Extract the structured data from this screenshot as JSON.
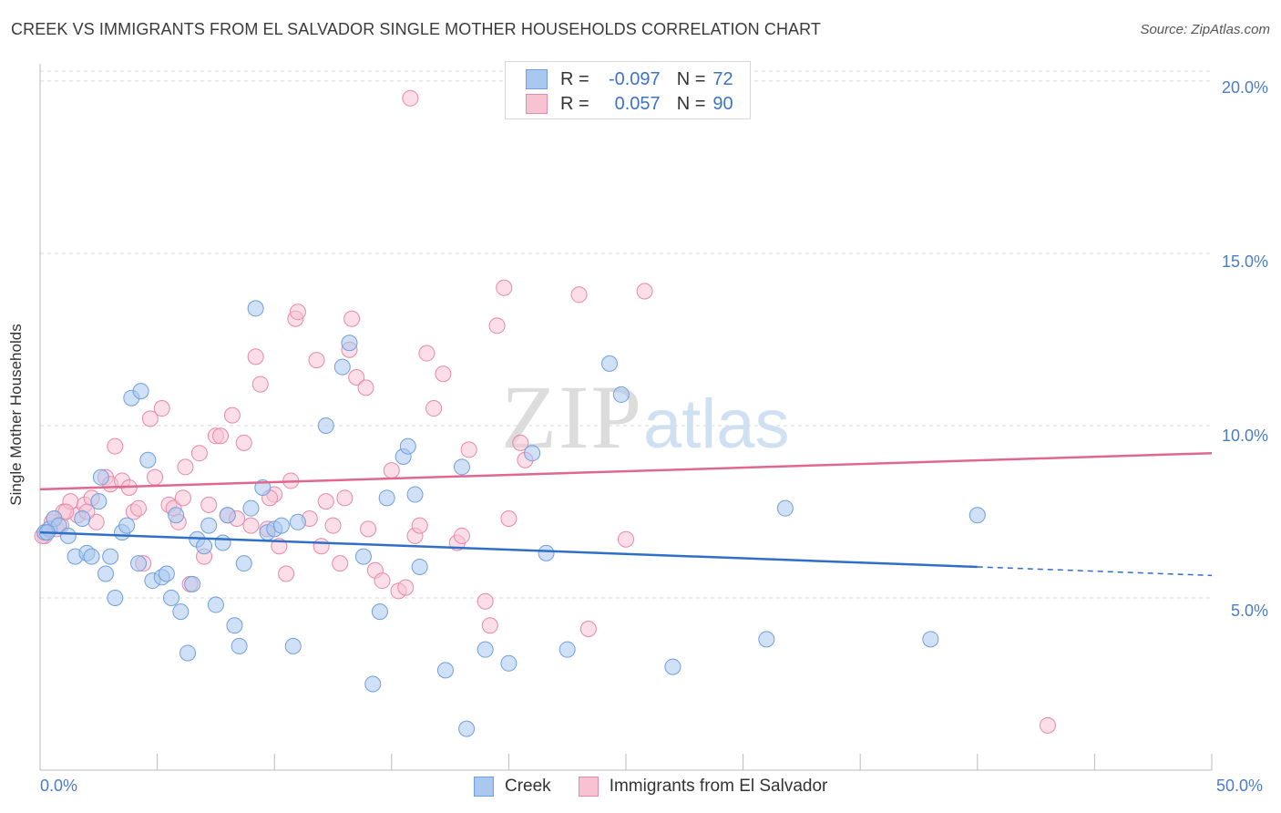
{
  "title": "CREEK VS IMMIGRANTS FROM EL SALVADOR SINGLE MOTHER HOUSEHOLDS CORRELATION CHART",
  "source": "Source: ZipAtlas.com",
  "watermark": {
    "zip": "ZIP",
    "atlas": "atlas"
  },
  "legend": {
    "r_label": "R =",
    "n_label": "N =",
    "rows": [
      {
        "r": "-0.097",
        "n": "72",
        "color": "#a9c8f0",
        "border": "#6f9fdc"
      },
      {
        "r": "0.057",
        "n": "90",
        "color": "#f7c3d3",
        "border": "#e888a8"
      }
    ]
  },
  "bottom_legend": [
    "Creek",
    "Immigrants from El Salvador"
  ],
  "colors": {
    "creek_fill": "#a9c8f0",
    "creek_stroke": "#6f9fdc",
    "creek_line": "#2f6fc8",
    "es_fill": "#f7c3d3",
    "es_stroke": "#e888a8",
    "es_line": "#e0678f",
    "grid": "#dadada",
    "axis": "#bbbbbb"
  },
  "chart_data": {
    "type": "scatter",
    "title": "CREEK VS IMMIGRANTS FROM EL SALVADOR SINGLE MOTHER HOUSEHOLDS CORRELATION CHART",
    "xlabel": "",
    "ylabel": "Single Mother Households",
    "xlim": [
      0,
      50
    ],
    "ylim": [
      0,
      20.5
    ],
    "x_tick_labels": [
      "0.0%",
      "50.0%"
    ],
    "y_ticks": [
      5,
      10,
      15,
      20
    ],
    "y_tick_labels": [
      "5.0%",
      "10.0%",
      "15.0%",
      "20.0%"
    ],
    "grid": true,
    "series": [
      {
        "name": "Creek",
        "points": [
          [
            0.2,
            6.9
          ],
          [
            0.4,
            7.0
          ],
          [
            0.6,
            7.3
          ],
          [
            0.8,
            7.1
          ],
          [
            1.2,
            6.8
          ],
          [
            1.5,
            6.2
          ],
          [
            1.8,
            7.3
          ],
          [
            2.0,
            6.3
          ],
          [
            2.2,
            6.2
          ],
          [
            2.5,
            7.8
          ],
          [
            2.6,
            8.5
          ],
          [
            2.8,
            5.7
          ],
          [
            3.0,
            6.2
          ],
          [
            3.2,
            5.0
          ],
          [
            3.5,
            6.9
          ],
          [
            3.7,
            7.1
          ],
          [
            3.9,
            10.8
          ],
          [
            4.3,
            11.0
          ],
          [
            4.2,
            6.0
          ],
          [
            4.6,
            9.0
          ],
          [
            4.8,
            5.5
          ],
          [
            5.2,
            5.6
          ],
          [
            5.4,
            5.7
          ],
          [
            5.6,
            5.0
          ],
          [
            5.8,
            7.4
          ],
          [
            6.0,
            4.6
          ],
          [
            6.3,
            3.4
          ],
          [
            6.5,
            5.4
          ],
          [
            6.7,
            6.7
          ],
          [
            7.0,
            6.5
          ],
          [
            7.2,
            7.1
          ],
          [
            7.5,
            4.8
          ],
          [
            7.8,
            6.6
          ],
          [
            8.0,
            7.4
          ],
          [
            8.3,
            4.2
          ],
          [
            8.5,
            3.6
          ],
          [
            8.7,
            6.0
          ],
          [
            9.0,
            7.6
          ],
          [
            9.2,
            13.4
          ],
          [
            9.5,
            8.2
          ],
          [
            9.7,
            6.9
          ],
          [
            10.0,
            7.0
          ],
          [
            10.3,
            7.1
          ],
          [
            10.8,
            3.6
          ],
          [
            11.0,
            7.2
          ],
          [
            12.2,
            10.0
          ],
          [
            12.9,
            11.7
          ],
          [
            13.2,
            12.4
          ],
          [
            13.8,
            6.2
          ],
          [
            14.2,
            2.5
          ],
          [
            14.5,
            4.6
          ],
          [
            14.8,
            7.9
          ],
          [
            15.5,
            9.1
          ],
          [
            15.7,
            9.4
          ],
          [
            16.0,
            8.0
          ],
          [
            16.2,
            5.9
          ],
          [
            17.3,
            2.9
          ],
          [
            18.0,
            8.8
          ],
          [
            18.2,
            1.2
          ],
          [
            19.0,
            3.5
          ],
          [
            20.0,
            3.1
          ],
          [
            21.0,
            9.2
          ],
          [
            21.6,
            6.3
          ],
          [
            22.5,
            3.5
          ],
          [
            24.3,
            11.8
          ],
          [
            24.8,
            10.9
          ],
          [
            27.0,
            3.0
          ],
          [
            31.0,
            3.8
          ],
          [
            31.8,
            7.6
          ],
          [
            38.0,
            3.8
          ],
          [
            40.0,
            7.4
          ],
          [
            0.3,
            6.9
          ]
        ]
      },
      {
        "name": "Immigrants from El Salvador",
        "points": [
          [
            0.2,
            6.8
          ],
          [
            0.3,
            6.9
          ],
          [
            0.5,
            7.2
          ],
          [
            0.7,
            7.0
          ],
          [
            0.9,
            7.1
          ],
          [
            1.0,
            7.5
          ],
          [
            1.3,
            7.8
          ],
          [
            1.6,
            7.4
          ],
          [
            1.9,
            7.7
          ],
          [
            2.2,
            7.9
          ],
          [
            2.4,
            7.2
          ],
          [
            2.8,
            8.5
          ],
          [
            3.0,
            8.3
          ],
          [
            3.2,
            9.4
          ],
          [
            3.5,
            8.4
          ],
          [
            3.8,
            8.2
          ],
          [
            4.0,
            7.5
          ],
          [
            4.2,
            7.6
          ],
          [
            4.4,
            6.0
          ],
          [
            4.7,
            10.2
          ],
          [
            4.9,
            8.5
          ],
          [
            5.2,
            10.5
          ],
          [
            5.5,
            7.7
          ],
          [
            5.7,
            7.6
          ],
          [
            5.9,
            7.2
          ],
          [
            6.2,
            8.8
          ],
          [
            6.4,
            5.4
          ],
          [
            6.8,
            9.2
          ],
          [
            7.0,
            6.2
          ],
          [
            7.2,
            7.7
          ],
          [
            7.5,
            9.7
          ],
          [
            7.7,
            9.7
          ],
          [
            8.0,
            7.4
          ],
          [
            8.2,
            10.3
          ],
          [
            8.4,
            7.3
          ],
          [
            8.7,
            9.5
          ],
          [
            9.0,
            7.1
          ],
          [
            9.2,
            12.0
          ],
          [
            9.4,
            11.2
          ],
          [
            9.7,
            7.0
          ],
          [
            10.0,
            8.0
          ],
          [
            10.2,
            6.5
          ],
          [
            10.5,
            5.7
          ],
          [
            10.7,
            8.4
          ],
          [
            10.9,
            13.1
          ],
          [
            11.0,
            13.3
          ],
          [
            11.5,
            7.3
          ],
          [
            11.8,
            11.9
          ],
          [
            12.0,
            6.5
          ],
          [
            12.2,
            7.8
          ],
          [
            12.5,
            7.1
          ],
          [
            12.8,
            6.0
          ],
          [
            13.0,
            7.9
          ],
          [
            13.2,
            12.2
          ],
          [
            13.5,
            11.4
          ],
          [
            13.9,
            11.1
          ],
          [
            14.0,
            7.0
          ],
          [
            14.3,
            5.8
          ],
          [
            14.6,
            5.5
          ],
          [
            15.0,
            8.7
          ],
          [
            15.3,
            5.2
          ],
          [
            15.6,
            5.3
          ],
          [
            16.0,
            6.8
          ],
          [
            16.2,
            7.1
          ],
          [
            16.5,
            12.1
          ],
          [
            16.8,
            10.5
          ],
          [
            17.2,
            11.5
          ],
          [
            17.8,
            6.6
          ],
          [
            18.0,
            6.8
          ],
          [
            18.3,
            9.3
          ],
          [
            19.0,
            4.9
          ],
          [
            19.2,
            4.2
          ],
          [
            19.5,
            12.9
          ],
          [
            19.8,
            14.0
          ],
          [
            20.0,
            7.3
          ],
          [
            20.5,
            9.5
          ],
          [
            20.7,
            9.0
          ],
          [
            23.0,
            13.8
          ],
          [
            23.4,
            4.1
          ],
          [
            25.0,
            6.7
          ],
          [
            25.8,
            13.9
          ],
          [
            13.3,
            13.1
          ],
          [
            15.8,
            19.5
          ],
          [
            43.0,
            1.3
          ],
          [
            0.1,
            6.8
          ],
          [
            0.6,
            7.3
          ],
          [
            1.1,
            7.5
          ],
          [
            2.0,
            7.5
          ],
          [
            6.1,
            7.9
          ],
          [
            9.8,
            7.9
          ]
        ]
      }
    ],
    "trendlines": [
      {
        "name": "Creek",
        "solid": [
          [
            0,
            6.9
          ],
          [
            40,
            5.9
          ]
        ],
        "dashed": [
          [
            40,
            5.9
          ],
          [
            50,
            5.65
          ]
        ]
      },
      {
        "name": "Immigrants from El Salvador",
        "solid": [
          [
            0,
            8.15
          ],
          [
            50,
            9.2
          ]
        ]
      }
    ]
  }
}
